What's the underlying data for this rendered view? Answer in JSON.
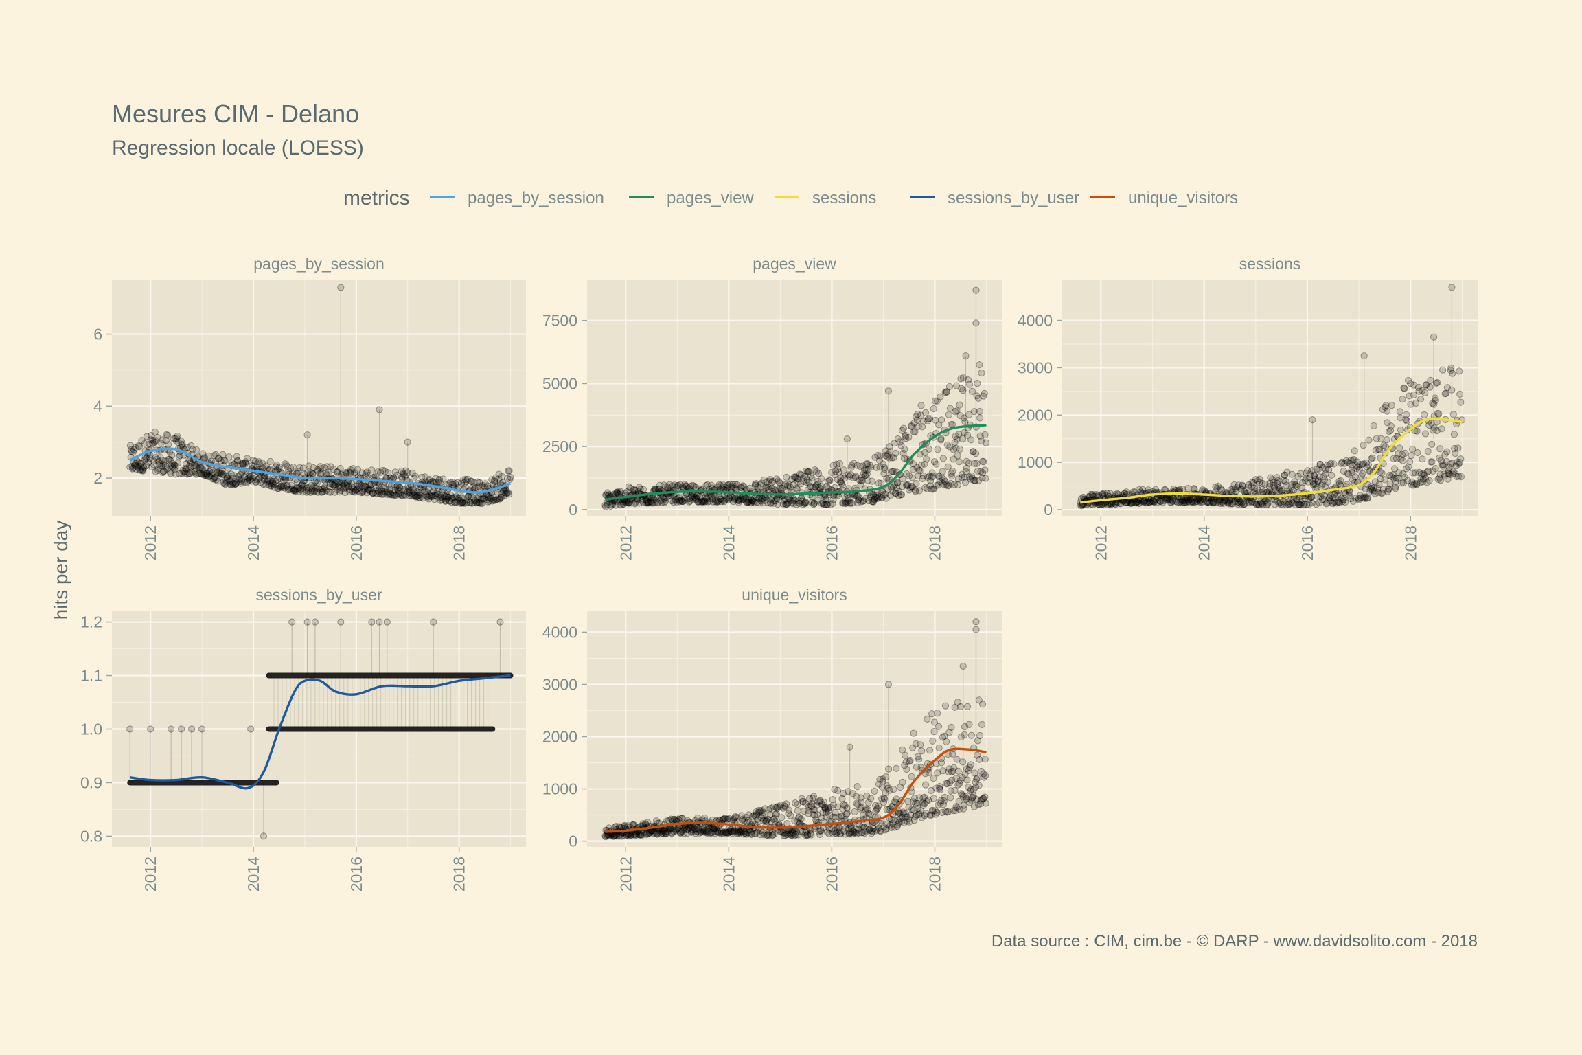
{
  "title": "Mesures CIM - Delano",
  "subtitle": "Regression locale (LOESS)",
  "caption": "Data source : CIM, cim.be - © DARP - www.davidsolito.com - 2018",
  "ylabel": "hits per day",
  "legend": {
    "title": "metrics",
    "items": [
      {
        "label": "pages_by_session",
        "color": "#4FA3DF"
      },
      {
        "label": "pages_view",
        "color": "#1F8E5A"
      },
      {
        "label": "sessions",
        "color": "#EFDE3A"
      },
      {
        "label": "sessions_by_user",
        "color": "#1F5AA0"
      },
      {
        "label": "unique_visitors",
        "color": "#C4500D"
      }
    ]
  },
  "chart_data": [
    {
      "type": "scatter",
      "panel": "pages_by_session",
      "color": "#4FA3DF",
      "xlim": [
        2011.25,
        2019.3
      ],
      "ylim": [
        0.95,
        7.5
      ],
      "xticks": [
        2012,
        2014,
        2016,
        2018
      ],
      "yticks": [
        2,
        4,
        6
      ],
      "loess": {
        "x": [
          2011.6,
          2012.0,
          2012.5,
          2013.0,
          2013.5,
          2014.0,
          2014.5,
          2015.0,
          2015.5,
          2016.0,
          2016.5,
          2017.0,
          2017.5,
          2018.0,
          2018.3,
          2018.6,
          2019.0
        ],
        "y": [
          2.5,
          2.75,
          2.8,
          2.45,
          2.3,
          2.2,
          2.1,
          2.0,
          2.0,
          1.97,
          1.92,
          1.87,
          1.78,
          1.65,
          1.6,
          1.65,
          1.85
        ]
      },
      "points": {
        "band": [
          [
            2011.6,
            2.2,
            2.9
          ],
          [
            2012.0,
            2.2,
            3.3
          ],
          [
            2012.5,
            2.1,
            3.2
          ],
          [
            2013.0,
            2.1,
            2.7
          ],
          [
            2013.5,
            1.8,
            2.7
          ],
          [
            2014.0,
            1.9,
            2.5
          ],
          [
            2014.5,
            1.7,
            2.5
          ],
          [
            2015.0,
            1.6,
            2.4
          ],
          [
            2016.0,
            1.6,
            2.3
          ],
          [
            2017.0,
            1.5,
            2.2
          ],
          [
            2018.0,
            1.3,
            2.0
          ],
          [
            2018.5,
            1.3,
            1.9
          ],
          [
            2019.0,
            1.5,
            2.3
          ]
        ],
        "outliers": [
          [
            2015.7,
            7.3
          ],
          [
            2016.45,
            3.9
          ],
          [
            2017.0,
            3.0
          ],
          [
            2015.05,
            3.2
          ]
        ]
      }
    },
    {
      "type": "scatter",
      "panel": "pages_view",
      "color": "#1F8E5A",
      "xlim": [
        2011.25,
        2019.3
      ],
      "ylim": [
        -250,
        9100
      ],
      "xticks": [
        2012,
        2014,
        2016,
        2018
      ],
      "yticks": [
        0,
        2500,
        5000,
        7500
      ],
      "loess": {
        "x": [
          2011.6,
          2012.0,
          2012.5,
          2013.0,
          2013.5,
          2014.0,
          2014.5,
          2015.0,
          2015.5,
          2016.0,
          2016.5,
          2017.0,
          2017.3,
          2017.6,
          2018.0,
          2018.4,
          2019.0
        ],
        "y": [
          400,
          500,
          620,
          700,
          720,
          680,
          620,
          600,
          630,
          680,
          720,
          900,
          1400,
          2200,
          2900,
          3250,
          3350
        ]
      },
      "points": {
        "band": [
          [
            2011.6,
            100,
            700
          ],
          [
            2012.0,
            200,
            900
          ],
          [
            2013.0,
            300,
            1000
          ],
          [
            2014.0,
            300,
            1000
          ],
          [
            2015.0,
            200,
            1300
          ],
          [
            2016.0,
            200,
            1800
          ],
          [
            2016.8,
            300,
            2000
          ],
          [
            2017.2,
            500,
            2800
          ],
          [
            2017.6,
            700,
            4000
          ],
          [
            2018.0,
            800,
            4500
          ],
          [
            2018.5,
            1000,
            5200
          ],
          [
            2019.0,
            1200,
            6000
          ]
        ],
        "outliers": [
          [
            2018.8,
            8700
          ],
          [
            2018.8,
            7400
          ],
          [
            2018.6,
            6100
          ],
          [
            2017.1,
            4700
          ],
          [
            2016.3,
            2800
          ]
        ]
      }
    },
    {
      "type": "scatter",
      "panel": "sessions",
      "color": "#EFDE3A",
      "xlim": [
        2011.25,
        2019.3
      ],
      "ylim": [
        -130,
        4850
      ],
      "xticks": [
        2012,
        2014,
        2016,
        2018
      ],
      "yticks": [
        0,
        1000,
        2000,
        3000,
        4000
      ],
      "loess": {
        "x": [
          2011.6,
          2012.0,
          2012.5,
          2013.0,
          2013.5,
          2014.0,
          2014.5,
          2015.0,
          2015.5,
          2016.0,
          2016.5,
          2017.0,
          2017.3,
          2017.6,
          2018.0,
          2018.3,
          2018.7,
          2019.0
        ],
        "y": [
          150,
          200,
          250,
          320,
          340,
          320,
          290,
          280,
          300,
          350,
          420,
          520,
          800,
          1300,
          1700,
          1900,
          1900,
          1850
        ]
      },
      "points": {
        "band": [
          [
            2011.6,
            80,
            300
          ],
          [
            2012.0,
            100,
            350
          ],
          [
            2013.0,
            150,
            450
          ],
          [
            2014.0,
            150,
            450
          ],
          [
            2015.0,
            100,
            650
          ],
          [
            2016.0,
            100,
            900
          ],
          [
            2016.8,
            150,
            1100
          ],
          [
            2017.2,
            250,
            1600
          ],
          [
            2017.6,
            400,
            2400
          ],
          [
            2018.0,
            500,
            2800
          ],
          [
            2018.5,
            600,
            3000
          ],
          [
            2019.0,
            700,
            3000
          ]
        ],
        "outliers": [
          [
            2018.8,
            4700
          ],
          [
            2018.45,
            3650
          ],
          [
            2017.1,
            3250
          ],
          [
            2016.1,
            1900
          ]
        ]
      }
    },
    {
      "type": "scatter",
      "panel": "sessions_by_user",
      "color": "#1F5AA0",
      "xlim": [
        2011.25,
        2019.3
      ],
      "ylim": [
        0.78,
        1.22
      ],
      "xticks": [
        2012,
        2014,
        2016,
        2018
      ],
      "yticks": [
        0.8,
        0.9,
        1.0,
        1.1,
        1.2
      ],
      "loess": {
        "x": [
          2011.6,
          2012.0,
          2012.5,
          2013.0,
          2013.5,
          2013.9,
          2014.2,
          2014.5,
          2014.8,
          2015.0,
          2015.3,
          2015.6,
          2016.0,
          2016.5,
          2017.0,
          2017.5,
          2018.0,
          2018.5,
          2019.0
        ],
        "y": [
          0.91,
          0.905,
          0.905,
          0.91,
          0.9,
          0.89,
          0.92,
          1.0,
          1.07,
          1.09,
          1.09,
          1.07,
          1.065,
          1.08,
          1.08,
          1.08,
          1.09,
          1.095,
          1.1
        ]
      },
      "points": {
        "rows": [
          [
            2011.6,
            2014.45,
            0.9
          ],
          [
            2014.3,
            2019.0,
            1.1
          ],
          [
            2014.3,
            2018.65,
            1.0
          ]
        ],
        "outliers": [
          [
            2011.6,
            1.0
          ],
          [
            2012.0,
            1.0
          ],
          [
            2012.4,
            1.0
          ],
          [
            2012.6,
            1.0
          ],
          [
            2012.8,
            1.0
          ],
          [
            2013.0,
            1.0
          ],
          [
            2013.95,
            1.0
          ],
          [
            2014.2,
            0.8
          ],
          [
            2014.75,
            1.2
          ],
          [
            2015.05,
            1.2
          ],
          [
            2015.2,
            1.2
          ],
          [
            2015.7,
            1.2
          ],
          [
            2016.3,
            1.2
          ],
          [
            2016.45,
            1.2
          ],
          [
            2016.6,
            1.2
          ],
          [
            2017.5,
            1.2
          ],
          [
            2018.8,
            1.2
          ]
        ]
      }
    },
    {
      "type": "scatter",
      "panel": "unique_visitors",
      "color": "#C4500D",
      "xlim": [
        2011.25,
        2019.3
      ],
      "ylim": [
        -110,
        4400
      ],
      "xticks": [
        2012,
        2014,
        2016,
        2018
      ],
      "yticks": [
        0,
        1000,
        2000,
        3000,
        4000
      ],
      "loess": {
        "x": [
          2011.6,
          2012.0,
          2012.5,
          2013.0,
          2013.5,
          2014.0,
          2014.5,
          2015.0,
          2015.5,
          2016.0,
          2016.5,
          2017.0,
          2017.3,
          2017.6,
          2018.0,
          2018.3,
          2018.7,
          2019.0
        ],
        "y": [
          180,
          200,
          260,
          330,
          350,
          320,
          270,
          260,
          290,
          330,
          380,
          450,
          700,
          1150,
          1550,
          1750,
          1750,
          1700
        ]
      },
      "points": {
        "band": [
          [
            2011.6,
            80,
            280
          ],
          [
            2012.0,
            100,
            300
          ],
          [
            2013.0,
            150,
            450
          ],
          [
            2014.0,
            150,
            450
          ],
          [
            2015.0,
            100,
            700
          ],
          [
            2016.0,
            120,
            1000
          ],
          [
            2016.8,
            150,
            1100
          ],
          [
            2017.2,
            250,
            1500
          ],
          [
            2017.6,
            400,
            2200
          ],
          [
            2018.0,
            500,
            2600
          ],
          [
            2018.5,
            600,
            2700
          ],
          [
            2019.0,
            700,
            2800
          ]
        ],
        "outliers": [
          [
            2018.8,
            4200
          ],
          [
            2018.8,
            4050
          ],
          [
            2018.55,
            3350
          ],
          [
            2017.1,
            3000
          ],
          [
            2016.35,
            1800
          ]
        ]
      }
    }
  ]
}
